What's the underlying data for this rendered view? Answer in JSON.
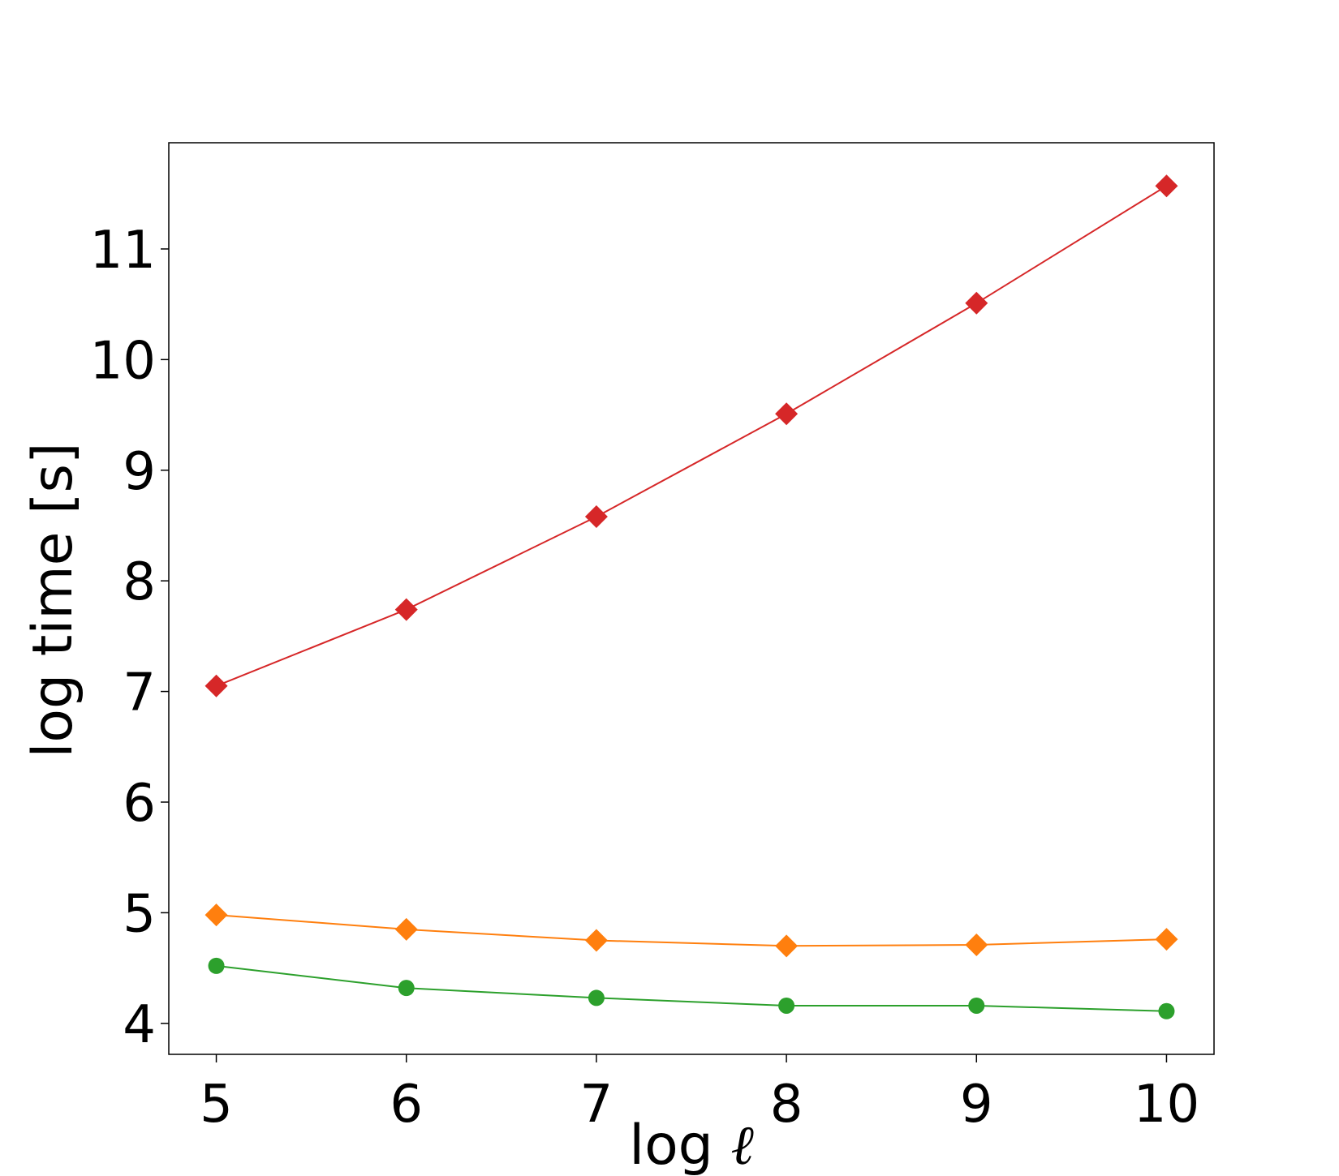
{
  "chart_data": {
    "type": "line",
    "title": "",
    "xlabel": "log",
    "xlabel_symbol": "ℓ",
    "ylabel": "log time [s]",
    "xlim": [
      4.75,
      10.25
    ],
    "ylim": [
      3.72,
      11.96
    ],
    "x_ticks": [
      5,
      6,
      7,
      8,
      9,
      10
    ],
    "y_ticks": [
      4,
      5,
      6,
      7,
      8,
      9,
      10,
      11
    ],
    "grid": false,
    "legend": "none",
    "x": [
      5,
      6,
      7,
      8,
      9,
      10
    ],
    "series": [
      {
        "color": "#d62728",
        "marker": "diamond",
        "values": [
          7.05,
          7.74,
          8.58,
          9.51,
          10.51,
          11.57
        ]
      },
      {
        "color": "#ff7f0e",
        "marker": "diamond",
        "values": [
          4.98,
          4.85,
          4.75,
          4.7,
          4.71,
          4.76
        ]
      },
      {
        "color": "#2ca02c",
        "marker": "circle",
        "values": [
          4.52,
          4.32,
          4.23,
          4.16,
          4.16,
          4.11
        ]
      }
    ]
  }
}
